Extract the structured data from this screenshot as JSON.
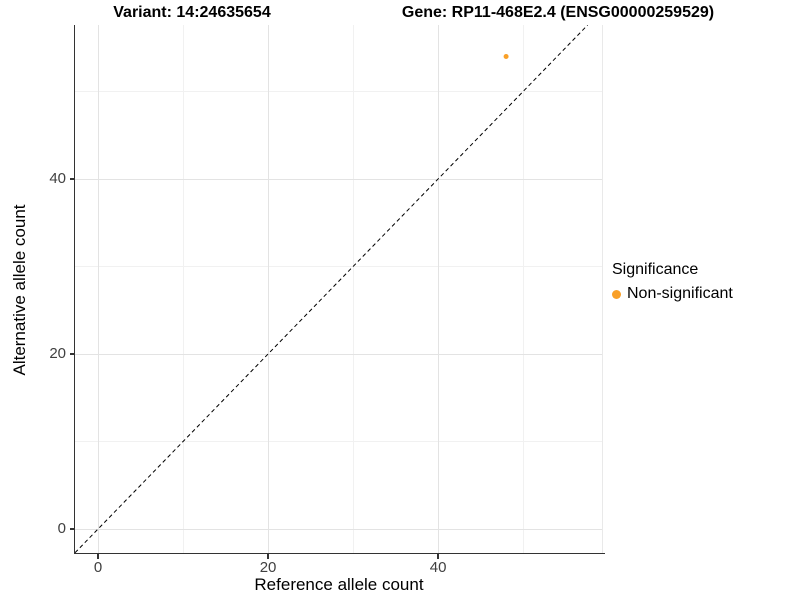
{
  "chart_data": {
    "type": "scatter",
    "title_left": "Variant: 14:24635654",
    "title_right": "Gene: RP11-468E2.4 (ENSG00000259529)",
    "xlabel": "Reference allele count",
    "ylabel": "Alternative allele count",
    "x_ticks": [
      0,
      20,
      40
    ],
    "y_ticks": [
      0,
      20,
      40
    ],
    "x_minor": [
      10,
      30,
      50
    ],
    "y_minor": [
      10,
      30,
      50
    ],
    "xlim": [
      -2.71,
      59.4
    ],
    "ylim": [
      -2.74,
      57.6
    ],
    "grid": true,
    "reference_line": {
      "type": "identity",
      "style": "dashed",
      "color": "#000000"
    },
    "series": [
      {
        "name": "Non-significant",
        "color": "#F9A028",
        "points": [
          {
            "x": 48,
            "y": 54
          }
        ]
      }
    ],
    "legend": {
      "title": "Significance",
      "position": "right",
      "items": [
        {
          "label": "Non-significant",
          "color": "#F9A028"
        }
      ]
    },
    "colors": {
      "axis_line": "#333333",
      "tick_label": "#404040",
      "grid_major": "#e3e3e3",
      "grid_minor": "#f1f1f1",
      "point": "#F9A028"
    }
  }
}
